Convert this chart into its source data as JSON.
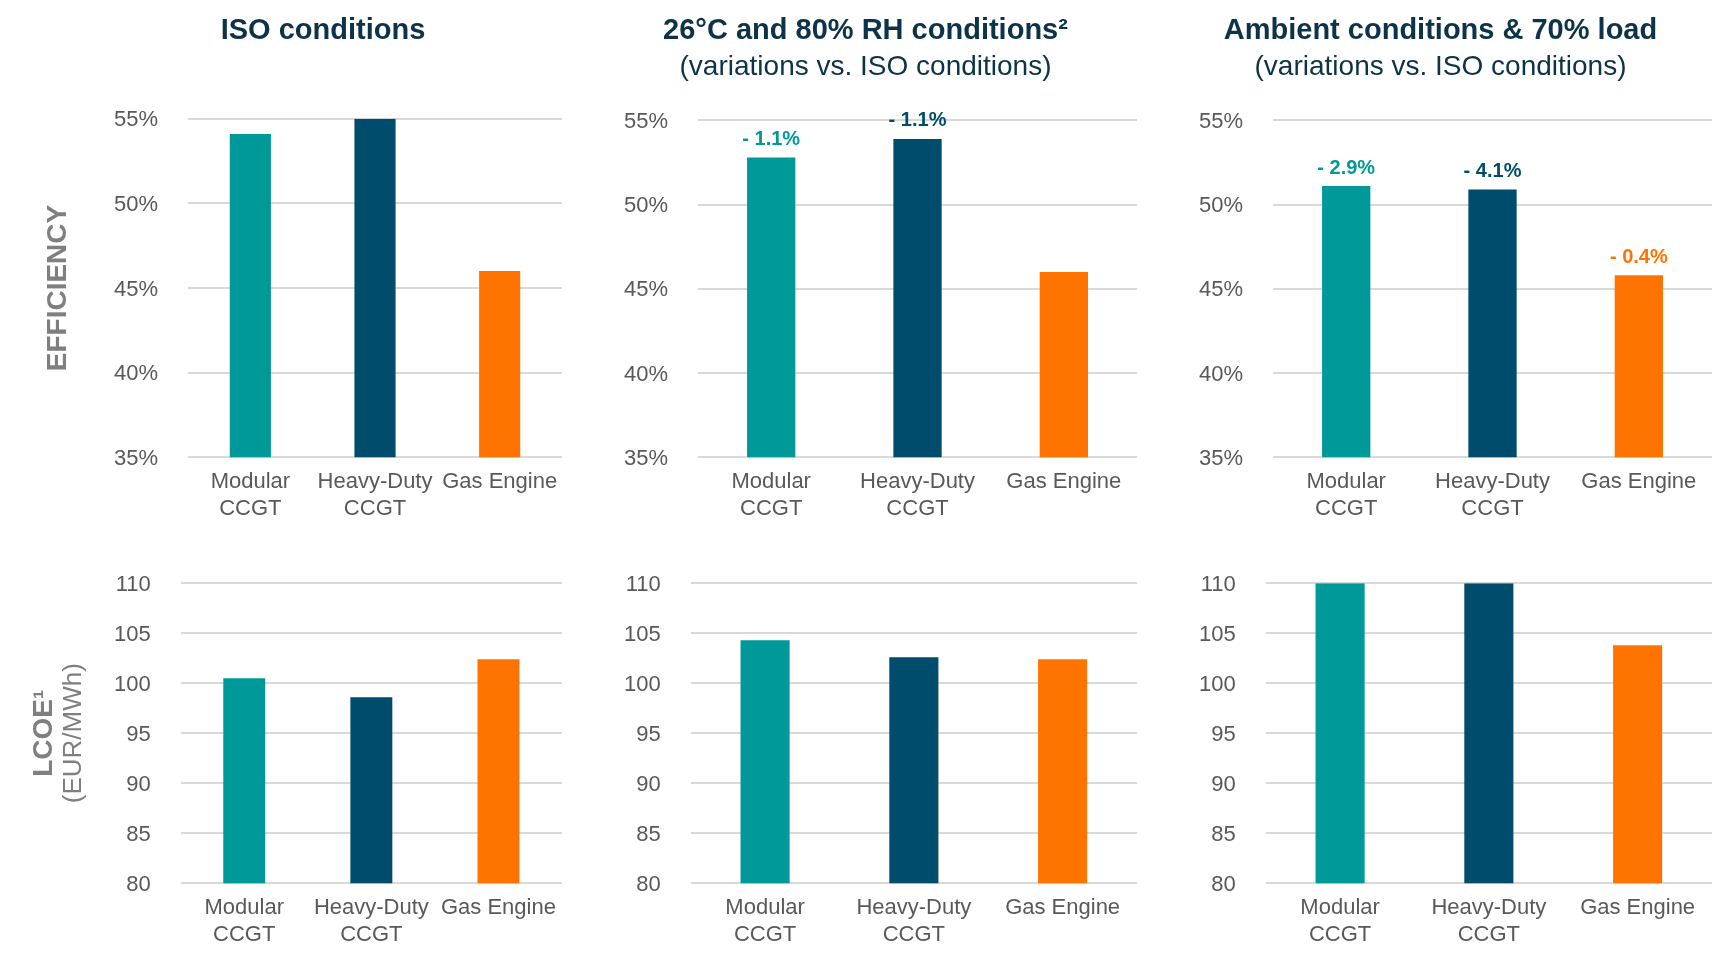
{
  "chart_data": [
    {
      "type": "bar",
      "title": "ISO conditions",
      "ylabel": "EFFICIENCY",
      "categories": [
        "Modular CCGT",
        "Heavy-Duty CCGT",
        "Gas Engine"
      ],
      "values": [
        54.1,
        55.0,
        46.0
      ],
      "colors": [
        "#009999",
        "#004c6c",
        "#ff7300"
      ],
      "ylim": [
        35,
        55
      ],
      "yticks": [
        {
          "value": 35,
          "label": "35%"
        },
        {
          "value": 40,
          "label": "40%"
        },
        {
          "value": 45,
          "label": "45%"
        },
        {
          "value": 50,
          "label": "50%"
        },
        {
          "value": 55,
          "label": "55%"
        }
      ],
      "grid": "y"
    },
    {
      "type": "bar",
      "title": "26°C and 80% RH conditions²",
      "subtitle": "(variations vs. ISO conditions)",
      "categories": [
        "Modular CCGT",
        "Heavy-Duty CCGT",
        "Gas Engine"
      ],
      "values": [
        52.8,
        53.9,
        46.0
      ],
      "colors": [
        "#009999",
        "#004c6c",
        "#ff7300"
      ],
      "ylim": [
        35,
        55
      ],
      "yticks": [
        {
          "value": 35,
          "label": "35%"
        },
        {
          "value": 40,
          "label": "40%"
        },
        {
          "value": 45,
          "label": "45%"
        },
        {
          "value": 50,
          "label": "50%"
        },
        {
          "value": 55,
          "label": "55%"
        }
      ],
      "grid": "y",
      "annotations": [
        {
          "text": "- 1.1%",
          "x": "Modular CCGT",
          "y": 52.8
        },
        {
          "text": "- 1.1%",
          "x": "Heavy-Duty CCGT",
          "y": 53.9
        }
      ]
    },
    {
      "type": "bar",
      "title": "Ambient conditions & 70% load",
      "subtitle": "(variations vs. ISO conditions)",
      "categories": [
        "Modular CCGT",
        "Heavy-Duty CCGT",
        "Gas Engine"
      ],
      "values": [
        51.1,
        50.9,
        45.8
      ],
      "colors": [
        "#009999",
        "#004c6c",
        "#ff7300"
      ],
      "ylim": [
        35,
        55
      ],
      "yticks": [
        {
          "value": 35,
          "label": "35%"
        },
        {
          "value": 40,
          "label": "40%"
        },
        {
          "value": 45,
          "label": "45%"
        },
        {
          "value": 50,
          "label": "50%"
        },
        {
          "value": 55,
          "label": "55%"
        }
      ],
      "grid": "y",
      "annotations": [
        {
          "text": "- 2.9%",
          "x": "Modular CCGT",
          "y": 51.1
        },
        {
          "text": "- 4.1%",
          "x": "Heavy-Duty CCGT",
          "y": 50.9
        },
        {
          "text": "- 0.4%",
          "x": "Gas Engine",
          "y": 45.8
        }
      ]
    },
    {
      "type": "bar",
      "ylabel": "LCOE¹\n(EUR/MWh)",
      "categories": [
        "Modular CCGT",
        "Heavy-Duty CCGT",
        "Gas Engine"
      ],
      "values": [
        100.5,
        98.6,
        102.4
      ],
      "colors": [
        "#009999",
        "#004c6c",
        "#ff7300"
      ],
      "ylim": [
        80,
        110
      ],
      "yticks": [
        80,
        85,
        90,
        95,
        100,
        105,
        110
      ],
      "grid": "y"
    },
    {
      "type": "bar",
      "categories": [
        "Modular CCGT",
        "Heavy-Duty CCGT",
        "Gas Engine"
      ],
      "values": [
        104.3,
        102.6,
        102.4
      ],
      "colors": [
        "#009999",
        "#004c6c",
        "#ff7300"
      ],
      "ylim": [
        80,
        110
      ],
      "yticks": [
        80,
        85,
        90,
        95,
        100,
        105,
        110
      ],
      "grid": "y"
    },
    {
      "type": "bar",
      "categories": [
        "Modular CCGT",
        "Heavy-Duty CCGT",
        "Gas Engine"
      ],
      "values": [
        110,
        110,
        103.8
      ],
      "colors": [
        "#009999",
        "#004c6c",
        "#ff7300"
      ],
      "ylim": [
        80,
        110
      ],
      "yticks": [
        80,
        85,
        90,
        95,
        100,
        105,
        110
      ],
      "grid": "y"
    }
  ]
}
